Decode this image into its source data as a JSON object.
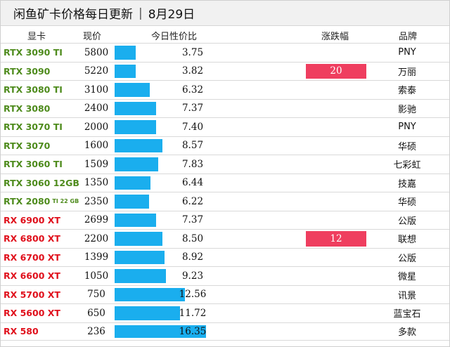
{
  "title": {
    "main": "闲鱼矿卡价格每日更新",
    "separator": "|",
    "date": "8月29日"
  },
  "headers": {
    "gpu": "显卡",
    "price": "现价",
    "ratio": "今日性价比",
    "change": "涨跌幅",
    "brand": "品牌"
  },
  "colors": {
    "nvidia": "#4e8b1c",
    "amd": "#e0101c",
    "bar": "#1aaeee",
    "change_badge": "#ef3e5f"
  },
  "ratio_max": 16.35,
  "rows": [
    {
      "gpu": "RTX 3090 TI",
      "sub": "",
      "vendor": "nv",
      "price": "5800",
      "ratio": 3.75,
      "ratio_text": "3.75",
      "change": "",
      "brand": "PNY"
    },
    {
      "gpu": "RTX 3090",
      "sub": "",
      "vendor": "nv",
      "price": "5220",
      "ratio": 3.82,
      "ratio_text": "3.82",
      "change": "20",
      "brand": "万丽"
    },
    {
      "gpu": "RTX 3080 TI",
      "sub": "",
      "vendor": "nv",
      "price": "3100",
      "ratio": 6.32,
      "ratio_text": "6.32",
      "change": "",
      "brand": "索泰"
    },
    {
      "gpu": "RTX 3080",
      "sub": "",
      "vendor": "nv",
      "price": "2400",
      "ratio": 7.37,
      "ratio_text": "7.37",
      "change": "",
      "brand": "影驰"
    },
    {
      "gpu": "RTX 3070 TI",
      "sub": "",
      "vendor": "nv",
      "price": "2000",
      "ratio": 7.4,
      "ratio_text": "7.40",
      "change": "",
      "brand": "PNY"
    },
    {
      "gpu": "RTX 3070",
      "sub": "",
      "vendor": "nv",
      "price": "1600",
      "ratio": 8.57,
      "ratio_text": "8.57",
      "change": "",
      "brand": "华硕"
    },
    {
      "gpu": "RTX 3060 TI",
      "sub": "",
      "vendor": "nv",
      "price": "1509",
      "ratio": 7.83,
      "ratio_text": "7.83",
      "change": "",
      "brand": "七彩虹"
    },
    {
      "gpu": "RTX 3060 12GB",
      "sub": "",
      "vendor": "nv",
      "price": "1350",
      "ratio": 6.44,
      "ratio_text": "6.44",
      "change": "",
      "brand": "技嘉"
    },
    {
      "gpu": "RTX 2080",
      "sub": "TI 22 GB",
      "vendor": "nv",
      "price": "2350",
      "ratio": 6.22,
      "ratio_text": "6.22",
      "change": "",
      "brand": "华硕"
    },
    {
      "gpu": "RX 6900 XT",
      "sub": "",
      "vendor": "amd",
      "price": "2699",
      "ratio": 7.37,
      "ratio_text": "7.37",
      "change": "",
      "brand": "公版"
    },
    {
      "gpu": "RX 6800 XT",
      "sub": "",
      "vendor": "amd",
      "price": "2200",
      "ratio": 8.5,
      "ratio_text": "8.50",
      "change": "12",
      "brand": "联想"
    },
    {
      "gpu": "RX 6700 XT",
      "sub": "",
      "vendor": "amd",
      "price": "1399",
      "ratio": 8.92,
      "ratio_text": "8.92",
      "change": "",
      "brand": "公版"
    },
    {
      "gpu": "RX 6600 XT",
      "sub": "",
      "vendor": "amd",
      "price": "1050",
      "ratio": 9.23,
      "ratio_text": "9.23",
      "change": "",
      "brand": "微星"
    },
    {
      "gpu": "RX 5700 XT",
      "sub": "",
      "vendor": "amd",
      "price": "750",
      "ratio": 12.56,
      "ratio_text": "12.56",
      "change": "",
      "brand": "讯景"
    },
    {
      "gpu": "RX 5600 XT",
      "sub": "",
      "vendor": "amd",
      "price": "650",
      "ratio": 11.72,
      "ratio_text": "11.72",
      "change": "",
      "brand": "蓝宝石"
    },
    {
      "gpu": "RX 580",
      "sub": "",
      "vendor": "amd",
      "price": "236",
      "ratio": 16.35,
      "ratio_text": "16.35",
      "change": "",
      "brand": "多款"
    }
  ]
}
